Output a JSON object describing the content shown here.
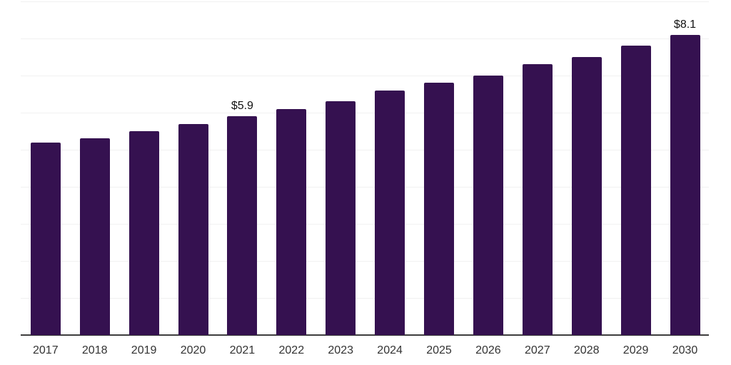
{
  "chart_data": {
    "type": "bar",
    "title": "",
    "xlabel": "",
    "ylabel": "",
    "categories": [
      "2017",
      "2018",
      "2019",
      "2020",
      "2021",
      "2022",
      "2023",
      "2024",
      "2025",
      "2026",
      "2027",
      "2028",
      "2029",
      "2030"
    ],
    "values": [
      5.2,
      5.3,
      5.5,
      5.7,
      5.9,
      6.1,
      6.3,
      6.6,
      6.8,
      7.0,
      7.3,
      7.5,
      7.8,
      8.1
    ],
    "annotations": [
      {
        "category": "2021",
        "text": "$5.9"
      },
      {
        "category": "2030",
        "text": "$8.1"
      }
    ],
    "ylim": [
      0,
      9
    ],
    "grid_step": 1,
    "grid": "horizontal",
    "y_tick_labels_visible": false,
    "legend": "none",
    "colors": {
      "bar": "#351150",
      "gridline": "#f1f1f1",
      "axis_line": "#3d3d3d",
      "value_label": "#111111",
      "tick_label": "#333333",
      "background": "#ffffff"
    }
  }
}
